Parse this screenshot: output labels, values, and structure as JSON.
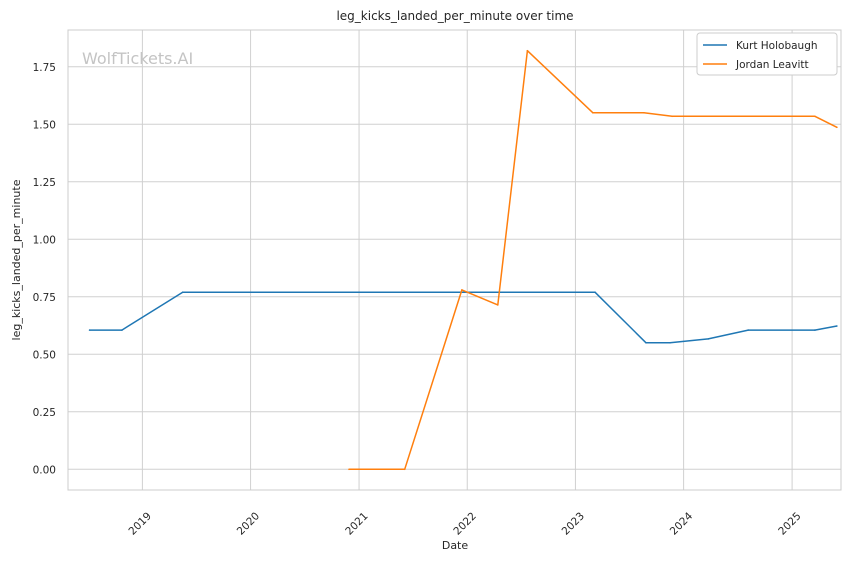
{
  "chart_data": {
    "type": "line",
    "title": "leg_kicks_landed_per_minute over time",
    "xlabel": "Date",
    "ylabel": "leg_kicks_landed_per_minute",
    "watermark": "WolfTickets.AI",
    "x_ticks": [
      "2019",
      "2020",
      "2021",
      "2022",
      "2023",
      "2024",
      "2025"
    ],
    "y_ticks": [
      "0.00",
      "0.25",
      "0.50",
      "0.75",
      "1.00",
      "1.25",
      "1.50",
      "1.75"
    ],
    "xlim": [
      "2018-04-25",
      "2025-06-15"
    ],
    "ylim": [
      -0.09,
      1.91
    ],
    "grid": true,
    "legend_position": "top-right",
    "series": [
      {
        "name": "Kurt Holobaugh",
        "color": "#1f77b4",
        "points": [
          [
            "2018-07-07",
            0.605
          ],
          [
            "2018-10-24",
            0.605
          ],
          [
            "2019-05-17",
            0.77
          ],
          [
            "2023-03-08",
            0.77
          ],
          [
            "2023-08-27",
            0.55
          ],
          [
            "2023-11-16",
            0.55
          ],
          [
            "2024-03-24",
            0.567
          ],
          [
            "2024-08-06",
            0.605
          ],
          [
            "2025-03-19",
            0.605
          ],
          [
            "2025-06-01",
            0.623
          ]
        ]
      },
      {
        "name": "Jordan Leavitt",
        "color": "#ff7f0e",
        "points": [
          [
            "2020-11-28",
            0.0
          ],
          [
            "2021-06-04",
            0.0
          ],
          [
            "2021-12-14",
            0.78
          ],
          [
            "2022-04-14",
            0.715
          ],
          [
            "2022-07-23",
            1.82
          ],
          [
            "2023-03-01",
            1.55
          ],
          [
            "2023-08-20",
            1.55
          ],
          [
            "2023-11-23",
            1.535
          ],
          [
            "2025-03-19",
            1.535
          ],
          [
            "2025-06-01",
            1.487
          ]
        ]
      }
    ]
  }
}
